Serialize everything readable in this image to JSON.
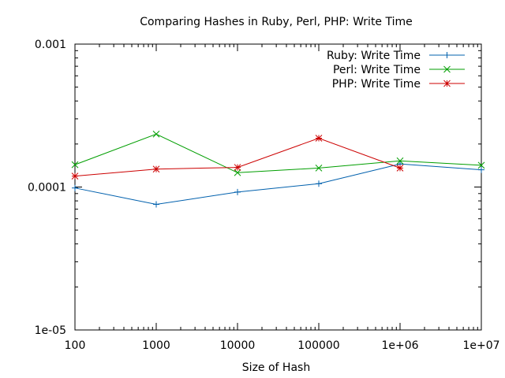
{
  "chart_data": {
    "type": "line",
    "title": "Comparing Hashes in Ruby, Perl, PHP: Write Time",
    "xlabel": "Size of Hash",
    "ylabel": "",
    "x_scale": "log",
    "y_scale": "log",
    "xlim": [
      100,
      10000000
    ],
    "ylim": [
      1e-05,
      0.001
    ],
    "x_tick_labels": [
      {
        "value": 100,
        "label": "100"
      },
      {
        "value": 1000,
        "label": "1000"
      },
      {
        "value": 10000,
        "label": "10000"
      },
      {
        "value": 100000,
        "label": "100000"
      },
      {
        "value": 1000000,
        "label": "1e+06"
      },
      {
        "value": 10000000,
        "label": "1e+07"
      }
    ],
    "y_tick_labels": [
      {
        "value": 1e-05,
        "label": "1e-05"
      },
      {
        "value": 0.0001,
        "label": "0.0001"
      },
      {
        "value": 0.001,
        "label": "0.001"
      }
    ],
    "grid": false,
    "legend_position": "top-right",
    "series": [
      {
        "name": "Ruby: Write Time",
        "color": "#0060ad",
        "marker": "plus",
        "x": [
          100,
          1000,
          10000,
          100000,
          1000000,
          10000000
        ],
        "y": [
          9.85e-05,
          7.56e-05,
          9.22e-05,
          0.0001055,
          0.000145,
          0.000132
        ]
      },
      {
        "name": "Perl: Write Time",
        "color": "#009e00",
        "marker": "cross",
        "x": [
          100,
          1000,
          10000,
          100000,
          1000000,
          10000000
        ],
        "y": [
          0.0001433,
          0.0002346,
          0.000126,
          0.0001358,
          0.0001524,
          0.000142
        ]
      },
      {
        "name": "PHP: Write Time",
        "color": "#cc0000",
        "marker": "star",
        "x": [
          100,
          1000,
          10000,
          100000,
          1000000
        ],
        "y": [
          0.0001192,
          0.0001335,
          0.0001372,
          0.0002196,
          0.0001358
        ]
      }
    ]
  }
}
